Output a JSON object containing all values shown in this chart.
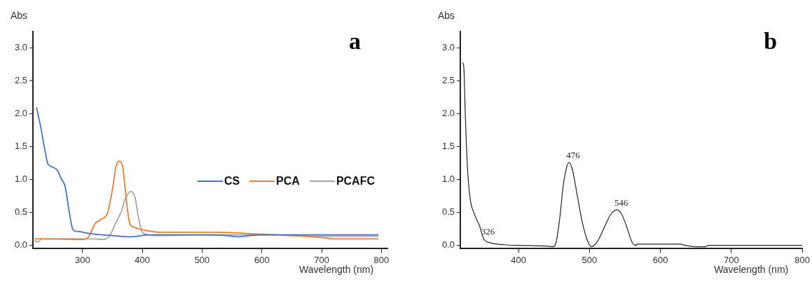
{
  "chart_data": [
    {
      "type": "line",
      "title": "a",
      "xlabel": "Wavelength (nm)",
      "ylabel": "Abs",
      "xlim": [
        217,
        810
      ],
      "ylim": [
        -0.05,
        3.25
      ],
      "xticks": [
        300,
        400,
        500,
        600,
        700,
        800
      ],
      "yticks": [
        {
          "value": 0,
          "label": "0.0"
        },
        {
          "value": 0.5,
          "label": "0.5"
        },
        {
          "value": 1,
          "label": "1.0"
        },
        {
          "value": 1.5,
          "label": "1.5"
        },
        {
          "value": 2,
          "label": "2.0"
        },
        {
          "value": 2.5,
          "label": "2.5"
        },
        {
          "value": 3,
          "label": "3.0"
        }
      ],
      "grid": false,
      "legend": "right",
      "marker": "none",
      "line_style": "solid",
      "series": [
        {
          "name": "CS",
          "color": "#4472c4",
          "x": [
            223,
            230,
            237,
            242,
            250,
            258,
            264,
            271,
            277,
            283,
            287,
            295,
            300,
            320,
            350,
            380,
            400,
            410,
            450,
            500,
            540,
            560,
            580,
            600,
            700,
            795
          ],
          "values": [
            2.1,
            1.8,
            1.45,
            1.24,
            1.19,
            1.14,
            1.02,
            0.89,
            0.55,
            0.26,
            0.22,
            0.21,
            0.2,
            0.17,
            0.15,
            0.13,
            0.15,
            0.16,
            0.16,
            0.16,
            0.15,
            0.13,
            0.15,
            0.16,
            0.16,
            0.16
          ]
        },
        {
          "name": "PCA",
          "color": "#ed7d31",
          "x": [
            220,
            240,
            300,
            310,
            321,
            330,
            342,
            350,
            356,
            362,
            367,
            371,
            375,
            379,
            385,
            395,
            410,
            430,
            500,
            525,
            600,
            650,
            700,
            720,
            795
          ],
          "values": [
            0.1,
            0.1,
            0.09,
            0.13,
            0.33,
            0.39,
            0.5,
            0.85,
            1.2,
            1.28,
            1.2,
            0.9,
            0.55,
            0.33,
            0.28,
            0.25,
            0.22,
            0.2,
            0.2,
            0.2,
            0.17,
            0.15,
            0.12,
            0.1,
            0.1
          ]
        },
        {
          "name": "PCAFC",
          "color": "#a5a5a5",
          "x": [
            220,
            225,
            232,
            300,
            320,
            335,
            345,
            355,
            365,
            372,
            381,
            388,
            393,
            400,
            410,
            430,
            500,
            600,
            700,
            795
          ],
          "values": [
            0.08,
            0.05,
            0.1,
            0.1,
            0.1,
            0.09,
            0.14,
            0.33,
            0.52,
            0.72,
            0.82,
            0.72,
            0.45,
            0.2,
            0.16,
            0.15,
            0.16,
            0.16,
            0.14,
            0.14
          ]
        }
      ]
    },
    {
      "type": "line",
      "title": "b",
      "xlabel": "Wavelength (nm)",
      "ylabel": "Abs",
      "xlim": [
        318,
        800
      ],
      "ylim": [
        -0.05,
        3.25
      ],
      "xticks": [
        400,
        500,
        600,
        700,
        800
      ],
      "yticks": [
        {
          "value": 0,
          "label": "0.0"
        },
        {
          "value": 0.5,
          "label": "0.5"
        },
        {
          "value": 1,
          "label": "1.0"
        },
        {
          "value": 1.5,
          "label": "1.5"
        },
        {
          "value": 2,
          "label": "2.0"
        },
        {
          "value": 2.5,
          "label": "2.5"
        },
        {
          "value": 3,
          "label": "3.0"
        }
      ],
      "grid": false,
      "legend": false,
      "marker": "none",
      "line_style": "solid",
      "annotations": [
        {
          "text": "326",
          "x": 351,
          "y": 0.1
        },
        {
          "text": "476",
          "x": 471,
          "y": 1.26
        },
        {
          "text": "546",
          "x": 539,
          "y": 0.54
        }
      ],
      "series": [
        {
          "color": "#222222",
          "x": [
            321,
            323,
            325,
            328,
            332,
            337,
            345,
            351,
            360,
            380,
            400,
            440,
            448,
            453,
            458,
            463,
            467,
            471,
            476,
            483,
            490,
            497,
            503,
            510,
            520,
            530,
            539,
            545,
            552,
            560,
            565,
            568,
            600,
            628,
            635,
            650,
            664,
            667,
            800
          ],
          "values": [
            2.78,
            2.7,
            2.0,
            1.2,
            0.7,
            0.5,
            0.3,
            0.1,
            0.04,
            0.01,
            0.0,
            -0.01,
            -0.02,
            0.05,
            0.4,
            0.9,
            1.15,
            1.26,
            1.15,
            0.75,
            0.35,
            0.08,
            -0.02,
            0.04,
            0.25,
            0.47,
            0.54,
            0.48,
            0.3,
            0.05,
            0.0,
            0.02,
            0.02,
            0.02,
            0.0,
            -0.02,
            -0.02,
            0.0,
            0.0
          ]
        }
      ]
    }
  ]
}
